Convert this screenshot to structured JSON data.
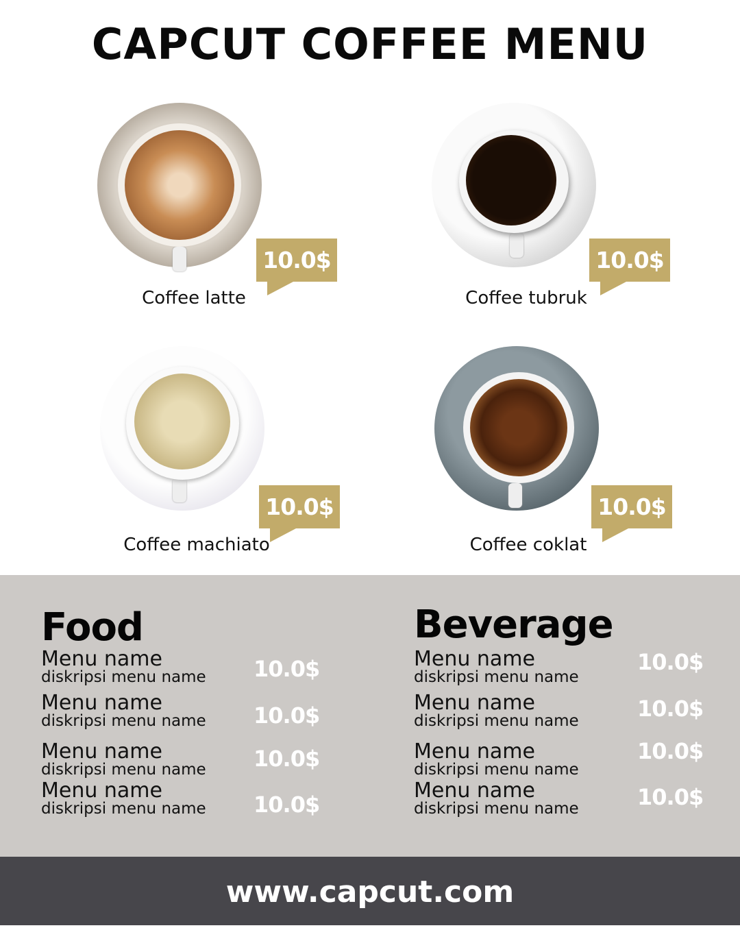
{
  "title": "CAPCUT COFFEE MENU",
  "featured": [
    {
      "name": "Coffee latte",
      "price": "10.0$"
    },
    {
      "name": "Coffee tubruk",
      "price": "10.0$"
    },
    {
      "name": "Coffee machiato",
      "price": "10.0$"
    },
    {
      "name": "Coffee coklat",
      "price": "10.0$"
    }
  ],
  "food": {
    "heading": "Food",
    "items": [
      {
        "name": "Menu name",
        "desc": "diskripsi menu name",
        "price": "10.0$"
      },
      {
        "name": "Menu name",
        "desc": "diskripsi menu name",
        "price": "10.0$"
      },
      {
        "name": "Menu name",
        "desc": "diskripsi menu name",
        "price": "10.0$"
      },
      {
        "name": "Menu name",
        "desc": "diskripsi menu name",
        "price": "10.0$"
      }
    ]
  },
  "beverage": {
    "heading": "Beverage",
    "items": [
      {
        "name": "Menu name",
        "desc": "diskripsi menu name",
        "price": "10.0$"
      },
      {
        "name": "Menu name",
        "desc": "diskripsi menu name",
        "price": "10.0$"
      },
      {
        "name": "Menu name",
        "desc": "diskripsi menu name",
        "price": "10.0$"
      },
      {
        "name": "Menu name",
        "desc": "diskripsi menu name",
        "price": "10.0$"
      }
    ]
  },
  "footer": "www.capcut.com",
  "colors": {
    "accent": "#c2ab6a",
    "panel": "#ccc9c6",
    "footer": "#47464b"
  }
}
